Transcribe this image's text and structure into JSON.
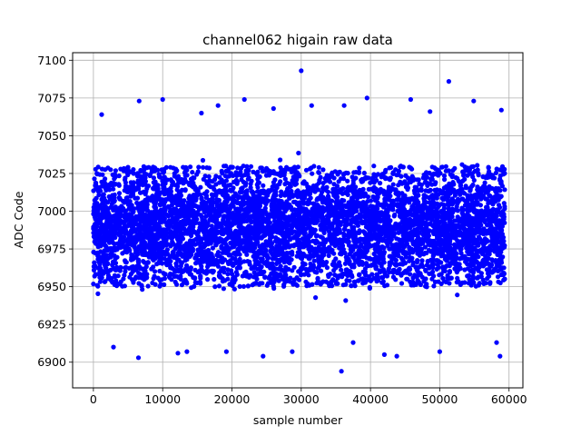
{
  "chart_data": {
    "type": "scatter",
    "title": "channel062 higain raw data",
    "xlabel": "sample number",
    "ylabel": "ADC Code",
    "xlim": [
      -3000,
      62000
    ],
    "ylim": [
      6883,
      7105
    ],
    "xticks": [
      0,
      10000,
      20000,
      30000,
      40000,
      50000,
      60000
    ],
    "xtick_labels": [
      "0",
      "10000",
      "20000",
      "30000",
      "40000",
      "50000",
      "60000"
    ],
    "yticks": [
      6900,
      6925,
      6950,
      6975,
      7000,
      7025,
      7050,
      7075,
      7100
    ],
    "ytick_labels": [
      "6900",
      "6925",
      "6950",
      "6975",
      "7000",
      "7025",
      "7050",
      "7075",
      "7100"
    ],
    "grid": true,
    "marker_color": "#0000ff",
    "series": [
      {
        "x_range": [
          0,
          59400
        ],
        "n_points": 59400,
        "typical_range": [
          6950,
          7030
        ],
        "mean": 6990,
        "outliers": [
          {
            "x": 30000,
            "y": 7093
          },
          {
            "x": 51300,
            "y": 7086
          },
          {
            "x": 35800,
            "y": 6894
          },
          {
            "x": 6500,
            "y": 6903
          },
          {
            "x": 24500,
            "y": 6904
          },
          {
            "x": 43800,
            "y": 6904
          },
          {
            "x": 58700,
            "y": 6904
          },
          {
            "x": 39500,
            "y": 7075
          },
          {
            "x": 10000,
            "y": 7074
          },
          {
            "x": 21800,
            "y": 7074
          },
          {
            "x": 45800,
            "y": 7074
          },
          {
            "x": 54900,
            "y": 7073
          },
          {
            "x": 6600,
            "y": 7073
          },
          {
            "x": 18000,
            "y": 7070
          },
          {
            "x": 26000,
            "y": 7068
          },
          {
            "x": 31500,
            "y": 7070
          },
          {
            "x": 58900,
            "y": 7067
          },
          {
            "x": 2900,
            "y": 6910
          },
          {
            "x": 13500,
            "y": 6907
          },
          {
            "x": 19200,
            "y": 6907
          },
          {
            "x": 28700,
            "y": 6907
          },
          {
            "x": 42000,
            "y": 6905
          },
          {
            "x": 50000,
            "y": 6907
          },
          {
            "x": 58200,
            "y": 6913
          },
          {
            "x": 12200,
            "y": 6906
          },
          {
            "x": 37500,
            "y": 6913
          },
          {
            "x": 1200,
            "y": 7064
          },
          {
            "x": 15600,
            "y": 7065
          },
          {
            "x": 36200,
            "y": 7070
          },
          {
            "x": 48600,
            "y": 7066
          }
        ]
      }
    ]
  }
}
